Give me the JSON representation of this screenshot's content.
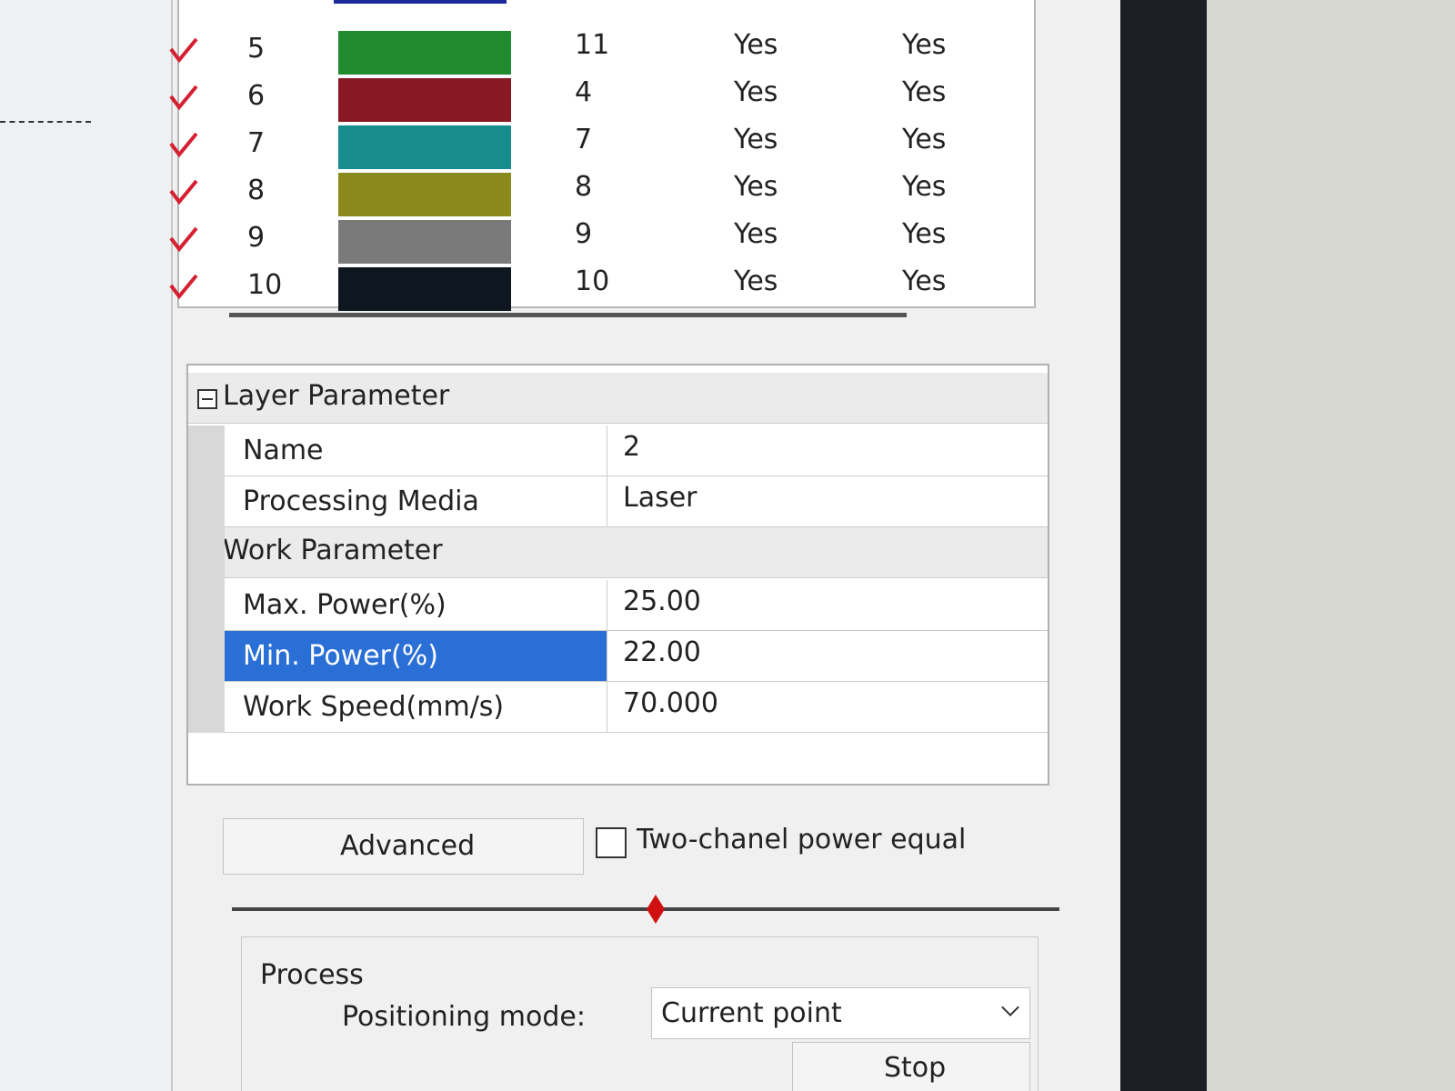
{
  "layers": {
    "rows": [
      {
        "number": "5",
        "color": "#1f8a2e",
        "count": "11",
        "output": "Yes",
        "visible": "Yes"
      },
      {
        "number": "6",
        "color": "#8a1824",
        "count": "4",
        "output": "Yes",
        "visible": "Yes"
      },
      {
        "number": "7",
        "color": "#178c8c",
        "count": "7",
        "output": "Yes",
        "visible": "Yes"
      },
      {
        "number": "8",
        "color": "#8a8a1c",
        "count": "8",
        "output": "Yes",
        "visible": "Yes"
      },
      {
        "number": "9",
        "color": "#7a7a7a",
        "count": "9",
        "output": "Yes",
        "visible": "Yes"
      },
      {
        "number": "10",
        "color": "#0e1620",
        "count": "10",
        "output": "Yes",
        "visible": "Yes"
      }
    ]
  },
  "properties": {
    "groups": [
      {
        "title": "Layer Parameter",
        "items": [
          {
            "label": "Name",
            "value": "2"
          },
          {
            "label": "Processing Media",
            "value": "Laser"
          }
        ]
      },
      {
        "title": "Work Parameter",
        "items": [
          {
            "label": "Max. Power(%)",
            "value": "25.00"
          },
          {
            "label": "Min. Power(%)",
            "value": "22.00",
            "selected": true
          },
          {
            "label": "Work Speed(mm/s)",
            "value": "70.000"
          }
        ]
      }
    ]
  },
  "controls": {
    "advanced_button": "Advanced",
    "two_channel_checkbox": "Two-chanel power equal",
    "process": {
      "title": "Process",
      "positioning_label": "Positioning mode:",
      "positioning_value": "Current point",
      "stop_button": "Stop"
    }
  }
}
